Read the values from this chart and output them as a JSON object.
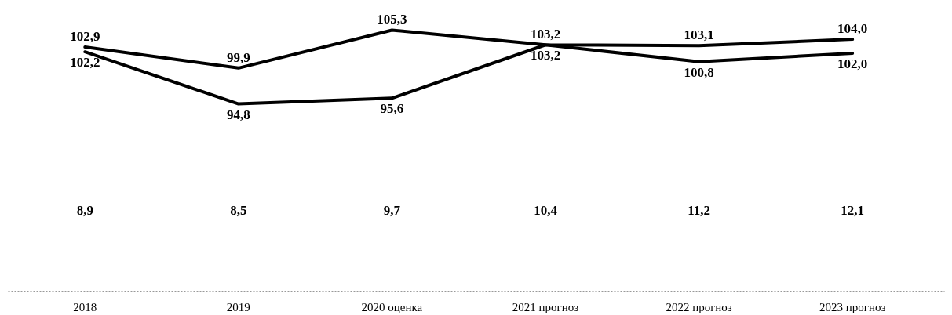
{
  "chart_data": {
    "type": "line",
    "categories": [
      "2018",
      "2019",
      "2020 оценка",
      "2021 прогноз",
      "2022 прогноз",
      "2023 прогноз"
    ],
    "series": [
      {
        "color": "#000000",
        "values": [
          102.9,
          99.9,
          105.3,
          103.2,
          103.1,
          104.0
        ],
        "value_labels": [
          "102,9",
          "99,9",
          "105,3",
          "103,2",
          "103,1",
          "104,0"
        ]
      },
      {
        "color": "#000000",
        "values": [
          102.2,
          94.8,
          95.6,
          103.2,
          100.8,
          102.0
        ],
        "value_labels": [
          "102,2",
          "94,8",
          "95,6",
          "103,2",
          "100,8",
          "102,0"
        ]
      }
    ],
    "annotations": [
      "8,9",
      "8,5",
      "9,7",
      "10,4",
      "11,2",
      "12,1"
    ],
    "marker": "none",
    "line_style": "solid",
    "grid": false
  }
}
